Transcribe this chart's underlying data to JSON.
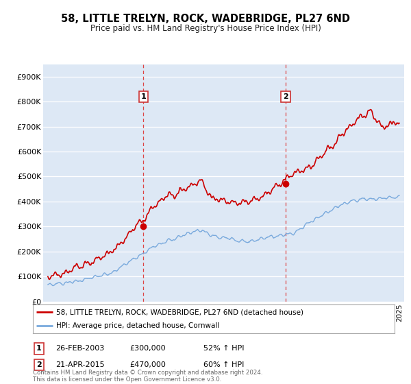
{
  "title": "58, LITTLE TRELYN, ROCK, WADEBRIDGE, PL27 6ND",
  "subtitle": "Price paid vs. HM Land Registry's House Price Index (HPI)",
  "ylabel_ticks": [
    "£0",
    "£100K",
    "£200K",
    "£300K",
    "£400K",
    "£500K",
    "£600K",
    "£700K",
    "£800K",
    "£900K"
  ],
  "ytick_values": [
    0,
    100000,
    200000,
    300000,
    400000,
    500000,
    600000,
    700000,
    800000,
    900000
  ],
  "ylim": [
    0,
    950000
  ],
  "xlim_start": 1994.6,
  "xlim_end": 2025.4,
  "sale1_date": 2003.15,
  "sale1_price": 300000,
  "sale1_label": "1",
  "sale2_date": 2015.3,
  "sale2_price": 470000,
  "sale2_label": "2",
  "line_red_color": "#cc0000",
  "line_blue_color": "#7aaadd",
  "dashed_red_color": "#dd4444",
  "background_color": "#dde8f5",
  "legend_line1": "58, LITTLE TRELYN, ROCK, WADEBRIDGE, PL27 6ND (detached house)",
  "legend_line2": "HPI: Average price, detached house, Cornwall",
  "table_row1": [
    "1",
    "26-FEB-2003",
    "£300,000",
    "52% ↑ HPI"
  ],
  "table_row2": [
    "2",
    "21-APR-2015",
    "£470,000",
    "60% ↑ HPI"
  ],
  "footnote": "Contains HM Land Registry data © Crown copyright and database right 2024.\nThis data is licensed under the Open Government Licence v3.0."
}
